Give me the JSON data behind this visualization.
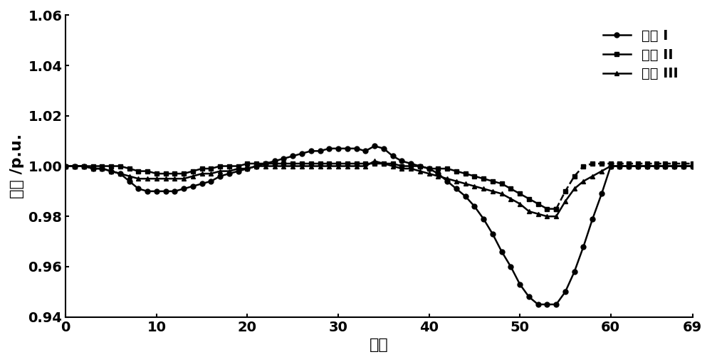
{
  "nodes": [
    0,
    1,
    2,
    3,
    4,
    5,
    6,
    7,
    8,
    9,
    10,
    11,
    12,
    13,
    14,
    15,
    16,
    17,
    18,
    19,
    20,
    21,
    22,
    23,
    24,
    25,
    26,
    27,
    28,
    29,
    30,
    31,
    32,
    33,
    34,
    35,
    36,
    37,
    38,
    39,
    40,
    41,
    42,
    43,
    44,
    45,
    46,
    47,
    48,
    49,
    50,
    51,
    52,
    53,
    54,
    55,
    56,
    57,
    58,
    59,
    60,
    61,
    62,
    63,
    64,
    65,
    66,
    67,
    68,
    69
  ],
  "scheme1": [
    1.0,
    1.0,
    1.0,
    0.999,
    0.999,
    0.998,
    0.997,
    0.994,
    0.991,
    0.99,
    0.99,
    0.99,
    0.99,
    0.991,
    0.992,
    0.993,
    0.994,
    0.996,
    0.997,
    0.998,
    0.999,
    1.0,
    1.001,
    1.002,
    1.003,
    1.004,
    1.005,
    1.006,
    1.006,
    1.007,
    1.007,
    1.007,
    1.007,
    1.006,
    1.008,
    1.007,
    1.004,
    1.002,
    1.001,
    1.0,
    0.999,
    0.997,
    0.994,
    0.991,
    0.988,
    0.984,
    0.979,
    0.973,
    0.966,
    0.96,
    0.953,
    0.948,
    0.945,
    0.945,
    0.945,
    0.95,
    0.958,
    0.968,
    0.979,
    0.989,
    1.0,
    1.0,
    1.0,
    1.0,
    1.0,
    1.0,
    1.0,
    1.0,
    1.0,
    1.0
  ],
  "scheme2_solid_nodes": [
    0,
    1,
    2,
    3,
    4,
    5,
    6,
    7,
    8,
    9,
    10,
    11,
    12,
    13,
    14,
    15,
    16,
    17,
    18,
    19,
    20,
    21,
    22,
    23,
    24,
    25,
    26,
    27,
    28,
    29,
    30,
    31,
    32,
    33,
    34,
    35,
    36,
    37,
    38,
    39,
    40,
    41,
    42,
    43,
    44,
    45,
    46,
    47,
    48,
    49,
    50,
    51,
    52,
    53,
    54
  ],
  "scheme2_solid": [
    1.0,
    1.0,
    1.0,
    1.0,
    1.0,
    1.0,
    1.0,
    0.999,
    0.998,
    0.998,
    0.997,
    0.997,
    0.997,
    0.997,
    0.998,
    0.999,
    0.999,
    1.0,
    1.0,
    1.0,
    1.001,
    1.001,
    1.001,
    1.001,
    1.001,
    1.001,
    1.001,
    1.001,
    1.001,
    1.001,
    1.001,
    1.001,
    1.001,
    1.001,
    1.001,
    1.001,
    1.001,
    1.0,
    1.0,
    1.0,
    0.999,
    0.999,
    0.999,
    0.998,
    0.997,
    0.996,
    0.995,
    0.994,
    0.993,
    0.991,
    0.989,
    0.987,
    0.985,
    0.983,
    0.983
  ],
  "scheme2_dashed_nodes": [
    54,
    55,
    56,
    57,
    58,
    59,
    60,
    61,
    62,
    63,
    64,
    65,
    66,
    67,
    68,
    69
  ],
  "scheme2_dashed": [
    0.983,
    0.99,
    0.996,
    1.0,
    1.001,
    1.001,
    1.001,
    1.001,
    1.001,
    1.001,
    1.001,
    1.001,
    1.001,
    1.001,
    1.001,
    1.001
  ],
  "scheme3": [
    1.0,
    1.0,
    1.0,
    0.999,
    0.999,
    0.998,
    0.997,
    0.996,
    0.995,
    0.995,
    0.995,
    0.995,
    0.995,
    0.995,
    0.996,
    0.997,
    0.997,
    0.998,
    0.998,
    0.999,
    0.999,
    1.0,
    1.0,
    1.0,
    1.0,
    1.0,
    1.0,
    1.0,
    1.0,
    1.0,
    1.0,
    1.0,
    1.0,
    1.0,
    1.002,
    1.001,
    1.0,
    0.999,
    0.999,
    0.998,
    0.997,
    0.996,
    0.995,
    0.994,
    0.993,
    0.992,
    0.991,
    0.99,
    0.989,
    0.987,
    0.985,
    0.982,
    0.981,
    0.98,
    0.98,
    0.986,
    0.991,
    0.994,
    0.996,
    0.998,
    1.0,
    1.0,
    1.0,
    1.0,
    1.0,
    1.0,
    1.0,
    1.0,
    1.0,
    1.0
  ],
  "xlabel": "节点",
  "ylabel": "电压 /p.u.",
  "xlim": [
    0,
    69
  ],
  "ylim": [
    0.94,
    1.06
  ],
  "yticks": [
    0.94,
    0.96,
    0.98,
    1.0,
    1.02,
    1.04,
    1.06
  ],
  "xticks": [
    0,
    10,
    20,
    30,
    40,
    50,
    60,
    69
  ],
  "legend_labels": [
    "方案 I",
    "方案 II",
    "方案 III"
  ],
  "line_color": "#000000",
  "marker1": "o",
  "marker2": "s",
  "marker3": "^",
  "markersize": 5,
  "linewidth": 1.8,
  "font_size_label": 16,
  "font_size_tick": 14,
  "font_size_legend": 14
}
